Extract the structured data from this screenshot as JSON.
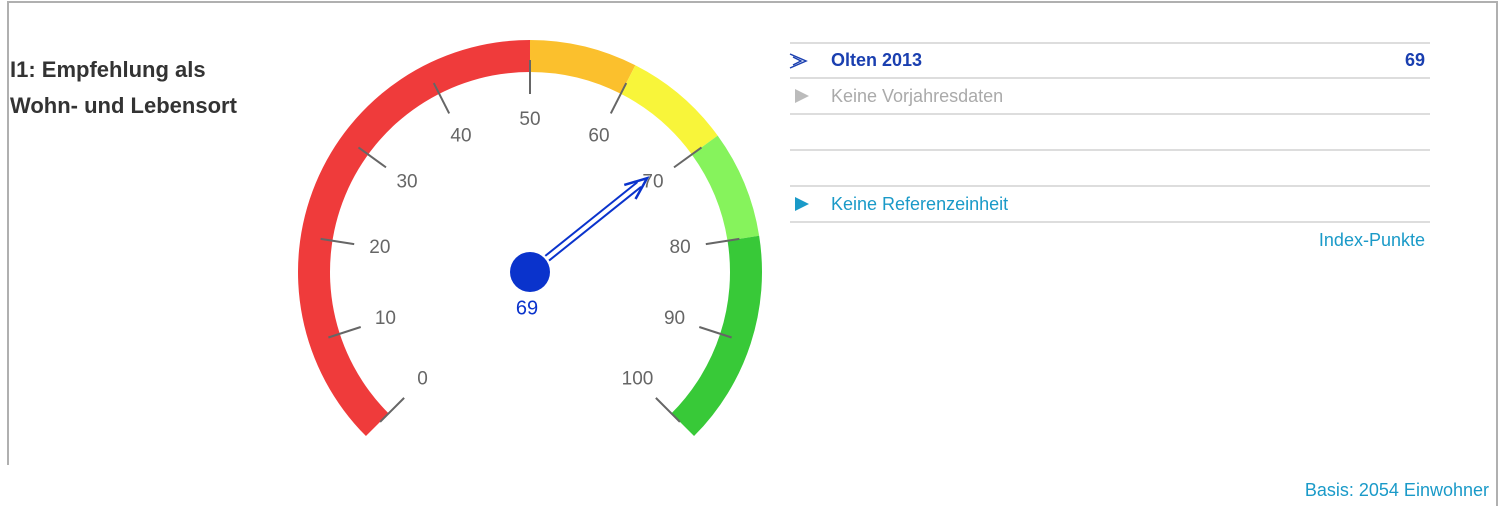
{
  "chart_data": {
    "type": "gauge",
    "title": "I1: Empfehlung als Wohn- und Lebensort",
    "value": 69,
    "ylim": [
      0,
      100
    ],
    "yticks": [
      0,
      10,
      20,
      30,
      40,
      50,
      60,
      70,
      80,
      90,
      100
    ],
    "bands": [
      {
        "from": 0,
        "to": 50,
        "color": "#ef3b3b"
      },
      {
        "from": 50,
        "to": 60,
        "color": "#fbc02d"
      },
      {
        "from": 60,
        "to": 70,
        "color": "#f8f53a"
      },
      {
        "from": 70,
        "to": 80,
        "color": "#86f35c"
      },
      {
        "from": 80,
        "to": 100,
        "color": "#38c938"
      }
    ],
    "needle_color": "#0a33cc",
    "series": [
      {
        "name": "Olten 2013",
        "color": "#1a3fb0",
        "values": [
          69
        ]
      }
    ],
    "previous_note": "Keine Vorjahresdaten",
    "reference_note": "Keine Referenzeinheit",
    "unit_label": "Index-Punkte",
    "footnote": "Basis: 2054 Einwohner"
  }
}
